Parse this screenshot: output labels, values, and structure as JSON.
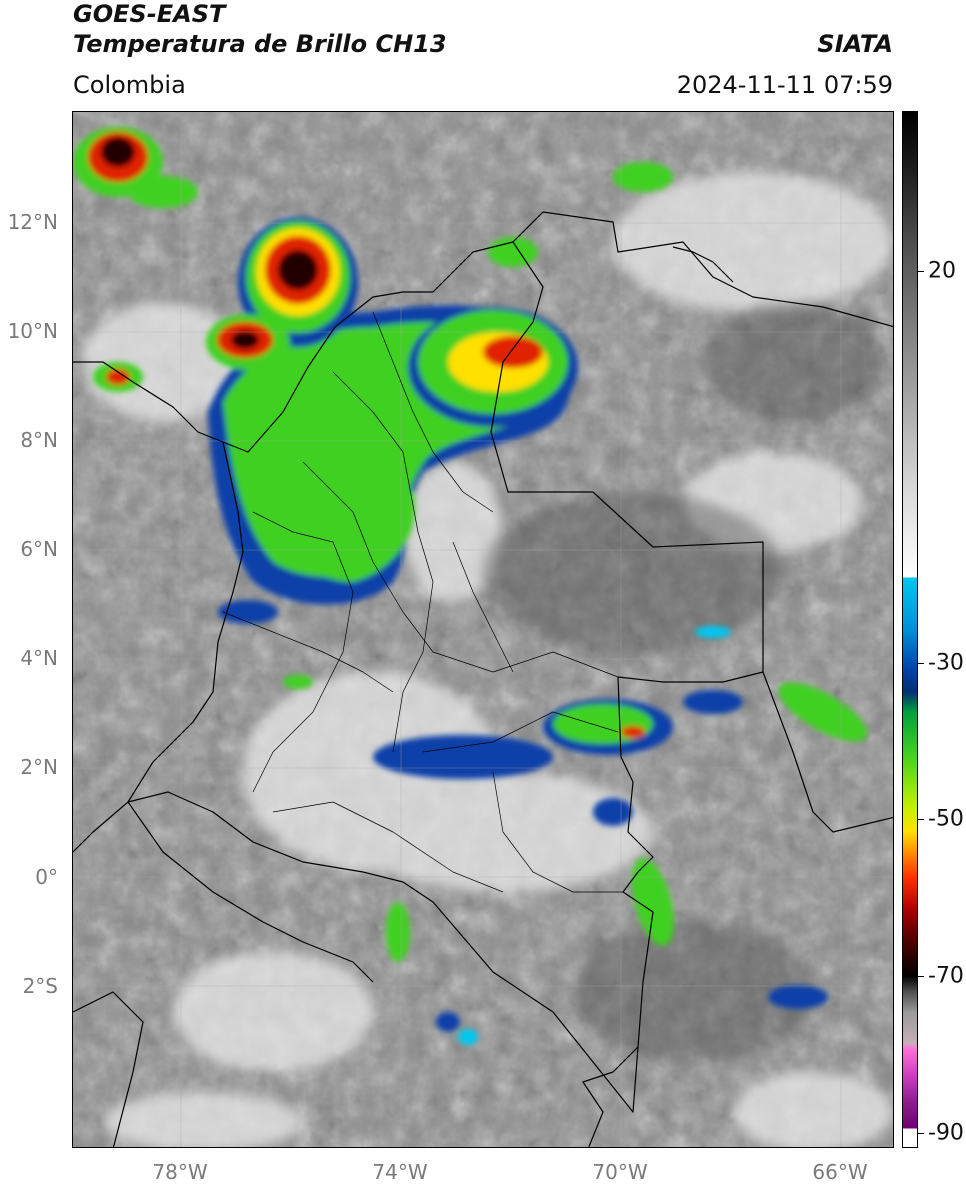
{
  "header": {
    "satellite": "GOES-EAST",
    "product": "Temperatura de Brillo CH13",
    "brand": "SIATA",
    "region": "Colombia",
    "timestamp": "2024-11-11 07:59"
  },
  "axes": {
    "lat_labels": [
      "12°N",
      "10°N",
      "8°N",
      "6°N",
      "4°N",
      "2°N",
      "0°",
      "2°S"
    ],
    "lon_labels": [
      "78°W",
      "74°W",
      "70°W",
      "66°W"
    ]
  },
  "colorbar": {
    "ticks": [
      "20",
      "-30",
      "-50",
      "-70",
      "-90"
    ]
  },
  "legend_colors": {
    "warm_gray": "#8a8a8a",
    "cloud_white": "#ffffff",
    "cyan": "#00c8f0",
    "blue": "#0040a8",
    "green": "#40d020",
    "yellow": "#ffe000",
    "red": "#ff3000",
    "dark_red": "#500000",
    "magenta": "#d040c0"
  }
}
